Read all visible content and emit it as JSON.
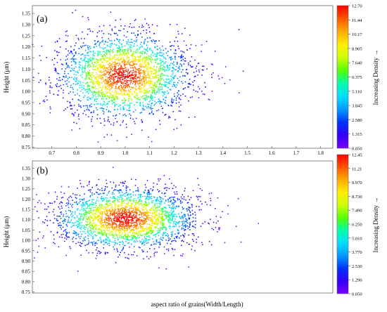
{
  "figure": {
    "xlabel": "aspect ratio of grains(Width/Length)"
  },
  "colormap": [
    "#7a00ff",
    "#3300ff",
    "#0033ff",
    "#0099ff",
    "#00ddff",
    "#00ffaa",
    "#55ff00",
    "#ccff00",
    "#ffee00",
    "#ffaa00",
    "#ff5500",
    "#ff0000"
  ],
  "chart_data": [
    {
      "type": "scatter",
      "panel_label": "(a)",
      "ylabel": "Height (μm)",
      "xlim": [
        0.62,
        1.85
      ],
      "ylim": [
        0.745,
        1.385
      ],
      "x_ticks": [
        0.7,
        0.8,
        0.9,
        1.0,
        1.1,
        1.2,
        1.3,
        1.4,
        1.5,
        1.6,
        1.7,
        1.8
      ],
      "x_tick_labels": [
        "0.7",
        "0.8",
        "0.9",
        "1.0",
        "1.1",
        "1.2",
        "1.3",
        "1.4",
        "1.5",
        "1.6",
        "1.7",
        "1.8"
      ],
      "y_ticks": [
        0.75,
        0.8,
        0.85,
        0.9,
        0.95,
        1.0,
        1.05,
        1.1,
        1.15,
        1.2,
        1.25,
        1.3,
        1.35
      ],
      "y_tick_labels": [
        "0.75",
        "0.80",
        "0.85",
        "0.90",
        "0.95",
        "1.00",
        "1.05",
        "1.10",
        "1.15",
        "1.20",
        "1.25",
        "1.30",
        "1.35"
      ],
      "density_center": {
        "x": 0.995,
        "y": 1.07
      },
      "density_spread": {
        "x": 0.13,
        "y": 0.095
      },
      "point_count": 2600,
      "colorbar": {
        "title": "Increasing Density →",
        "min": 0.05,
        "max": 12.7,
        "tick_labels": [
          "12.70",
          "11.44",
          "10.17",
          "8.905",
          "7.640",
          "6.375",
          "5.110",
          "3.845",
          "2.580",
          "1.315",
          "0.050"
        ]
      }
    },
    {
      "type": "scatter",
      "panel_label": "(b)",
      "ylabel": "Height (μm)",
      "xlim": [
        0.62,
        1.85
      ],
      "ylim": [
        0.745,
        1.385
      ],
      "y_ticks": [
        0.75,
        0.8,
        0.85,
        0.9,
        0.95,
        1.0,
        1.05,
        1.1,
        1.15,
        1.2,
        1.25,
        1.3,
        1.35
      ],
      "y_tick_labels": [
        "0.75",
        "0.80",
        "0.85",
        "0.90",
        "0.95",
        "1.00",
        "1.05",
        "1.10",
        "1.15",
        "1.20",
        "1.25",
        "1.30",
        "1.35"
      ],
      "density_center": {
        "x": 1.0,
        "y": 1.105
      },
      "density_spread": {
        "x": 0.14,
        "y": 0.075
      },
      "point_count": 2600,
      "colorbar": {
        "title": "Increasing Density →",
        "min": 0.05,
        "max": 12.45,
        "tick_labels": [
          "12.45",
          "11.21",
          "9.970",
          "8.730",
          "7.490",
          "6.250",
          "5.010",
          "3.770",
          "2.530",
          "1.290",
          "0.050"
        ]
      }
    }
  ]
}
